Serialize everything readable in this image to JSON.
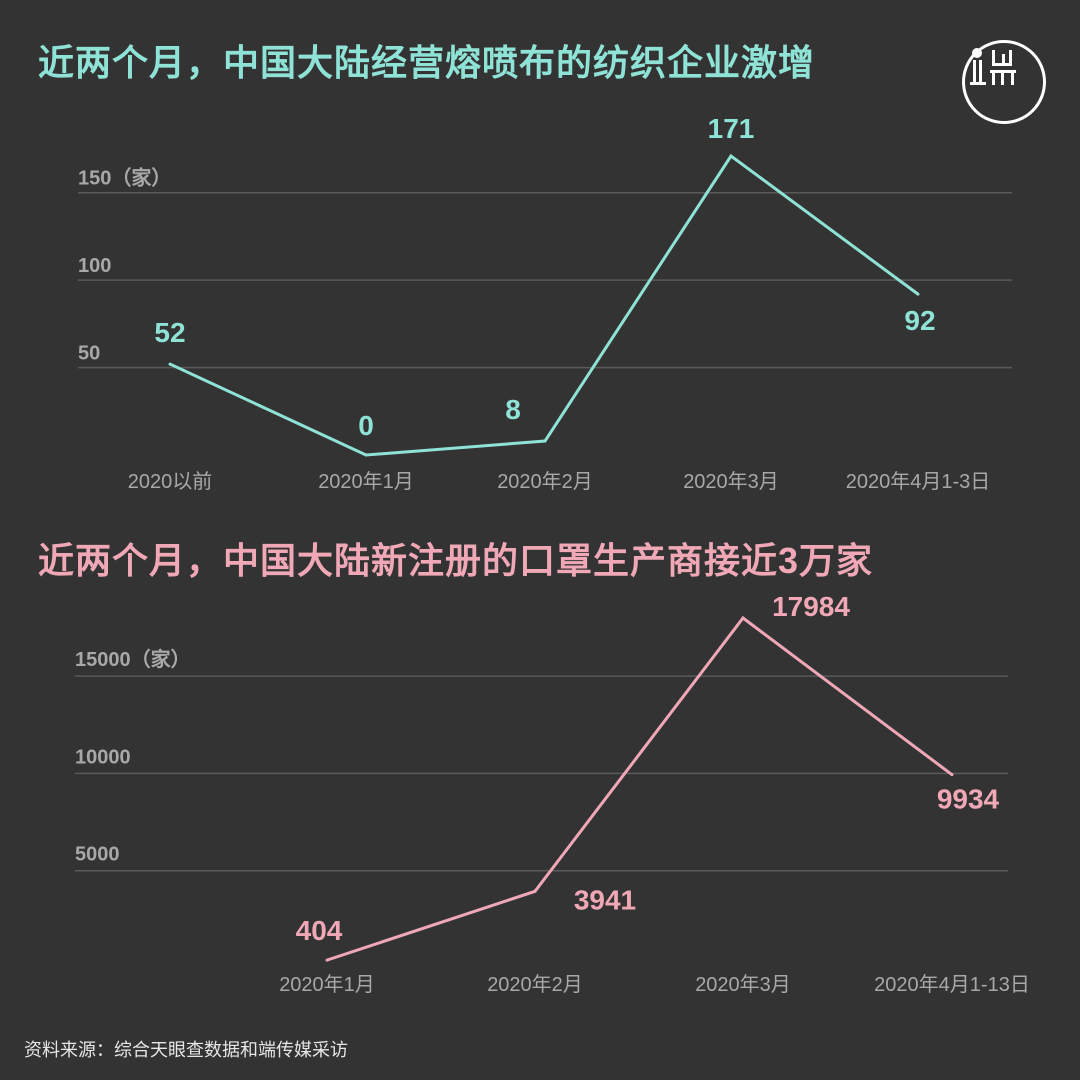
{
  "source_note": "资料来源：综合天眼查数据和端传媒采访",
  "logo": {
    "icon": "initium-logo-icon"
  },
  "colors": {
    "background": "#333333",
    "chart1": "#8fe3d6",
    "chart2": "#f0a8b7",
    "grid": "#5a5a5a",
    "tick": "#a8a8a8"
  },
  "chart_data": [
    {
      "type": "line",
      "title": "近两个月，中国大陆经营熔喷布的纺织企业激增",
      "categories": [
        "2020以前",
        "2020年1月",
        "2020年2月",
        "2020年3月",
        "2020年4月1-3日"
      ],
      "series": [
        {
          "values": [
            52,
            0,
            8,
            171,
            92
          ]
        }
      ],
      "yticks": [
        {
          "value": 50,
          "label": "50"
        },
        {
          "value": 100,
          "label": "100"
        },
        {
          "value": 150,
          "label": "150（家）"
        }
      ],
      "ylim": [
        0,
        171
      ],
      "grid": true
    },
    {
      "type": "line",
      "title": "近两个月，中国大陆新注册的口罩生产商接近3万家",
      "categories": [
        "2020年1月",
        "2020年2月",
        "2020年3月",
        "2020年4月1-13日"
      ],
      "series": [
        {
          "values": [
            404,
            3941,
            17984,
            9934
          ]
        }
      ],
      "yticks": [
        {
          "value": 5000,
          "label": "5000"
        },
        {
          "value": 10000,
          "label": "10000"
        },
        {
          "value": 15000,
          "label": "15000（家）"
        }
      ],
      "ylim": [
        0,
        17984
      ],
      "grid": true
    }
  ]
}
